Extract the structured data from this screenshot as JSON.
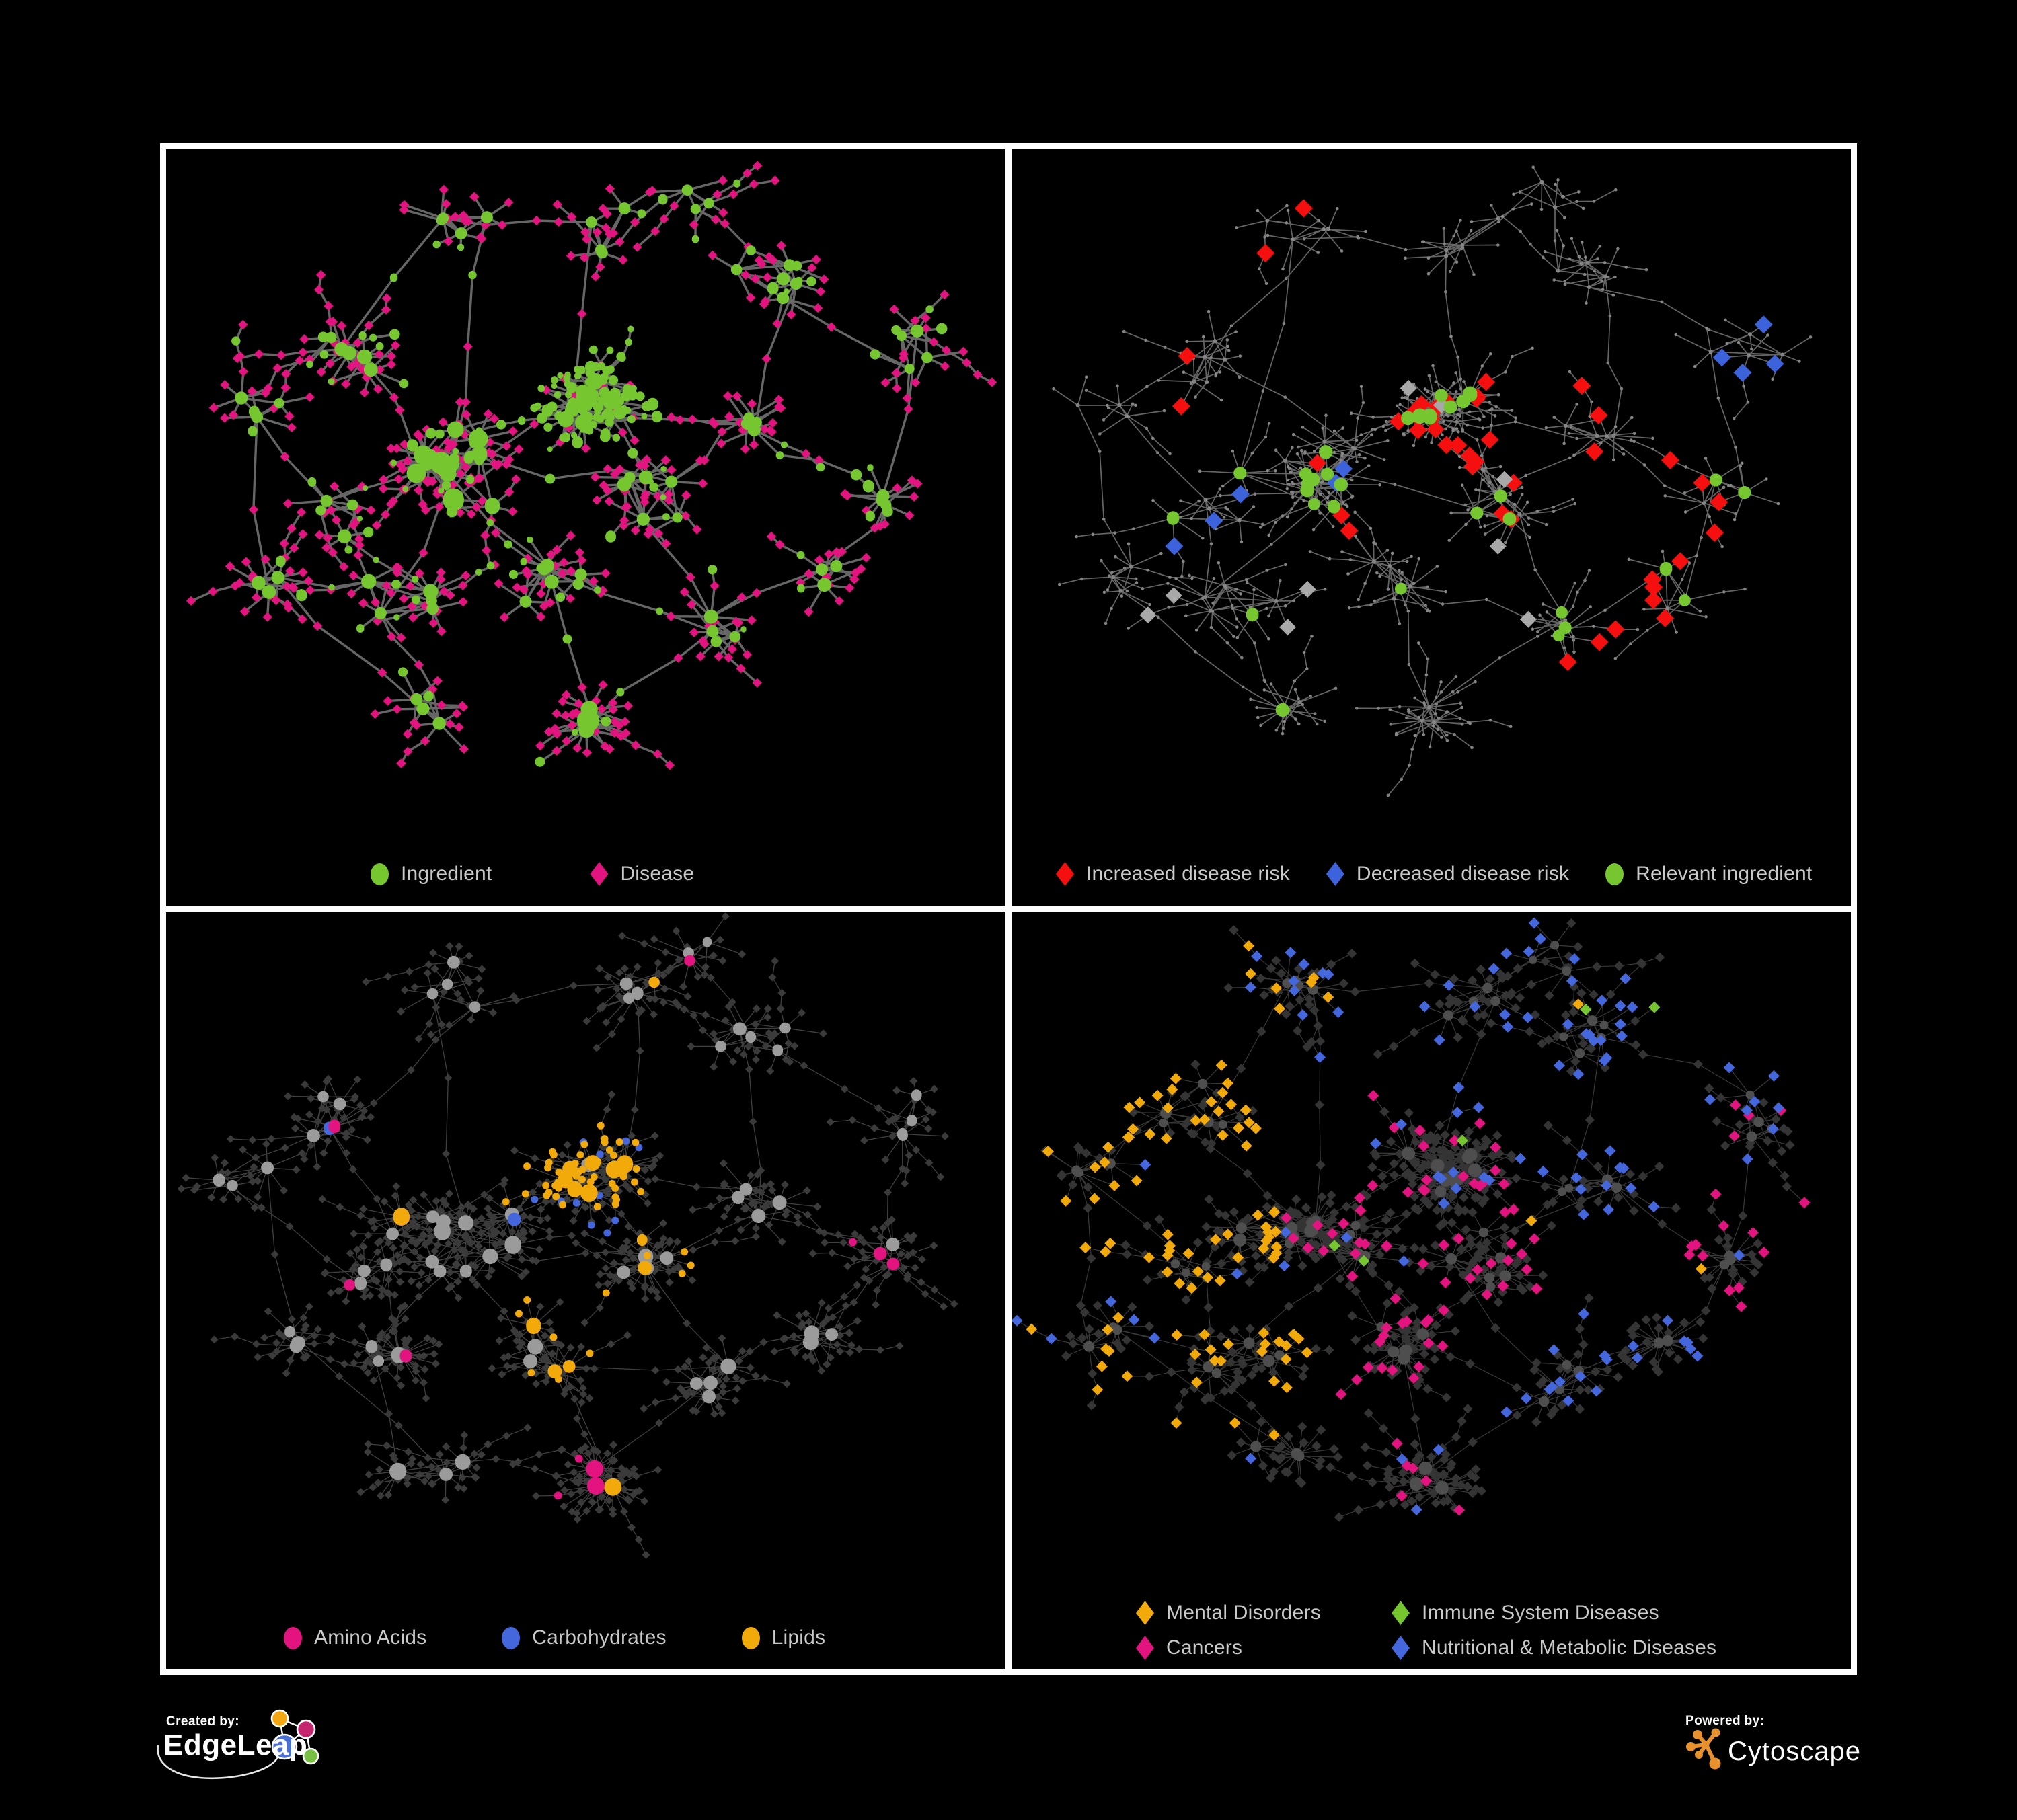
{
  "page": {
    "background": "#000000",
    "panel_border": "#fdfdfd",
    "legend_text_color": "#c9c9c9"
  },
  "panels": [
    {
      "name": "ingredient-disease-network",
      "legend_layout": "row",
      "legend": [
        {
          "shape": "circle",
          "color": "#76c72f",
          "label": "Ingredient"
        },
        {
          "shape": "diamond",
          "color": "#e3137f",
          "label": "Disease"
        }
      ],
      "style": {
        "mode": "A",
        "edge_color": "#6c6c6c",
        "edge_width": 3.4,
        "edge_opacity": 0.95,
        "hub_color": "#76c72f",
        "leaf_color": "#e3137f",
        "green_leaf_prob": {
          "1": 0.82,
          "*": 0.13
        }
      }
    },
    {
      "name": "disease-risk-network",
      "legend_layout": "row",
      "legend": [
        {
          "shape": "diamond",
          "color": "#f50f0f",
          "label": "Increased disease risk"
        },
        {
          "shape": "diamond",
          "color": "#3d63dc",
          "label": "Decreased disease risk"
        },
        {
          "shape": "circle",
          "color": "#76c72f",
          "label": "Relevant ingredient"
        }
      ],
      "style": {
        "mode": "B",
        "edge_color": "#878787",
        "edge_width": 1.7,
        "edge_opacity": 0.75,
        "dot_color": "#858585",
        "red": "#f50f0f",
        "blue": "#3d63dc",
        "gray": "#a8a8a8",
        "green": "#76c72f",
        "green_hub_prob": {
          "0": 0.5,
          "1": 0.55,
          "2": 0.25,
          "3": 0.2,
          "4": 0.12,
          "5": 0.2,
          "6": 0.5,
          "8": 0.35,
          "9": 0.5,
          "10": 0.2,
          "12": 0.2,
          "13": 0.5,
          "16": 0.15,
          "17": 0.4,
          "18": 0.3
        },
        "red_leaf_prob": {
          "0": 0.05,
          "1": 0.08,
          "2": 0.05,
          "6": 0.1,
          "7": 0.1,
          "8": 0.1,
          "13": 0.12,
          "15": 0.04,
          "17": 0.12
        },
        "blue_leaf_prob": {
          "0": 0.03,
          "3": 0.28,
          "12": 0.15
        },
        "gray_leaf_prob": {
          "0": 0.02,
          "1": 0.015,
          "2": 0.02,
          "4": 0.03,
          "6": 0.02,
          "8": 0.03
        }
      }
    },
    {
      "name": "nutrient-group-network",
      "legend_layout": "row",
      "legend": [
        {
          "shape": "circle",
          "color": "#e3137f",
          "label": "Amino Acids"
        },
        {
          "shape": "circle",
          "color": "#4467de",
          "label": "Carbohydrates"
        },
        {
          "shape": "circle",
          "color": "#f2a90a",
          "label": "Lipids"
        }
      ],
      "style": {
        "mode": "C",
        "edge_color": "#8e8e8e",
        "edge_width": 1.3,
        "edge_opacity": 0.45,
        "hub_gray": "#9b9b9b",
        "leaf_dark": "#3a3a3a",
        "orange": "#f2a90a",
        "blue": "#4467de",
        "pink": "#e3137f",
        "orange_hub": {
          "1": 0.8,
          "5": 0.4,
          "6": 0.4,
          "0": 0.18,
          "11": 0.1,
          "14": 0.25,
          "15": 0.1,
          "*": 0.07
        },
        "blue_hub": {
          "1": 0.18,
          "2": 0.22,
          "8": 0.08,
          "0": 0.05
        },
        "pink_hub": {
          "3": 0.2,
          "4": 0.15,
          "9": 0.25,
          "10": 0.2,
          "13": 0.25,
          "16": 0.25,
          "18": 0.2,
          "0": 0.04,
          "*": 0.03
        },
        "orange_leaf": {
          "1": 0.45,
          "5": 0.04,
          "6": 0.04
        },
        "blue_leaf": {
          "1": 0.12,
          "2": 0.015
        },
        "pink_leaf": {
          "4": 0.012,
          "9": 0.012,
          "13": 0.012,
          "16": 0.015
        }
      }
    },
    {
      "name": "disease-group-network",
      "legend_layout": "grid",
      "legend": [
        {
          "shape": "diamond",
          "color": "#f2a90a",
          "label": "Mental Disorders"
        },
        {
          "shape": "diamond",
          "color": "#76c72f",
          "label": "Immune System Diseases"
        },
        {
          "shape": "diamond",
          "color": "#e3137f",
          "label": "Cancers"
        },
        {
          "shape": "diamond",
          "color": "#4467de",
          "label": "Nutritional & Metabolic Diseases"
        }
      ],
      "style": {
        "mode": "D",
        "edge_color": "#8e8e8e",
        "edge_width": 1.2,
        "edge_opacity": 0.4,
        "hub_color": "#4e4e4e",
        "leaf_dark": "#343434",
        "orange": "#f2a90a",
        "pink": "#e3137f",
        "blue": "#4467de",
        "green": "#76c72f",
        "orange_prob": {
          "2": 0.6,
          "3": 0.5,
          "4": 0.3,
          "10": 0.2,
          "15": 0.15,
          "16": 0.2,
          "18": 0.5,
          "0W": 0.35,
          "*": 0.01
        },
        "pink_prob": {
          "1": 0.12,
          "5": 0.25,
          "6": 0.32,
          "9": 0.1,
          "12": 0.25,
          "13": 0.5,
          "0E": 0.18,
          "*": 0.01
        },
        "blue_prob": {
          "1": 0.08,
          "7": 0.32,
          "8": 0.28,
          "11": 0.32,
          "12": 0.3,
          "14": 0.2,
          "15": 0.25,
          "16": 0.15,
          "17": 0.32,
          "19": 0.3,
          "*": 0.02
        },
        "green_prob": 0.012
      }
    }
  ],
  "footer": {
    "created_by_label": "Created by:",
    "created_by_name": "EdgeLeap",
    "powered_by_label": "Powered by:",
    "powered_by_name": "Cytoscape",
    "edgeleap_node_colors": [
      "#f2a713",
      "#c4256e",
      "#4a6fd4",
      "#77c043"
    ],
    "cytoscape_color": "#e8912d"
  },
  "network": {
    "panel_seeds": [
      11,
      23,
      37,
      53
    ],
    "color_seeds": [
      101,
      202,
      303,
      404
    ],
    "panel_leaf_scale": [
      1,
      0.95,
      1.45,
      1.45
    ],
    "clusters": [
      [
        0.34,
        0.49,
        13,
        0.085,
        4,
        9
      ],
      [
        0.51,
        0.38,
        9,
        0.05,
        7,
        13
      ],
      [
        0.2,
        0.3,
        5,
        0.06,
        3,
        8
      ],
      [
        0.21,
        0.55,
        4,
        0.05,
        3,
        7
      ],
      [
        0.26,
        0.68,
        5,
        0.05,
        4,
        9
      ],
      [
        0.45,
        0.66,
        5,
        0.05,
        4,
        9
      ],
      [
        0.58,
        0.52,
        6,
        0.055,
        3,
        8
      ],
      [
        0.7,
        0.42,
        4,
        0.05,
        3,
        7
      ],
      [
        0.66,
        0.72,
        4,
        0.045,
        4,
        9
      ],
      [
        0.5,
        0.87,
        3,
        0.04,
        9,
        16
      ],
      [
        0.3,
        0.84,
        3,
        0.045,
        5,
        10
      ],
      [
        0.72,
        0.18,
        5,
        0.06,
        3,
        6
      ],
      [
        0.9,
        0.3,
        4,
        0.05,
        3,
        6
      ],
      [
        0.88,
        0.52,
        3,
        0.04,
        3,
        7
      ],
      [
        0.55,
        0.12,
        4,
        0.05,
        3,
        6
      ],
      [
        0.33,
        0.1,
        4,
        0.05,
        3,
        6
      ],
      [
        0.1,
        0.64,
        3,
        0.04,
        3,
        7
      ],
      [
        0.8,
        0.66,
        3,
        0.045,
        4,
        8
      ],
      [
        0.08,
        0.4,
        3,
        0.045,
        3,
        6
      ],
      [
        0.64,
        0.06,
        3,
        0.04,
        2,
        5
      ]
    ],
    "links": [
      [
        0,
        1
      ],
      [
        0,
        2
      ],
      [
        0,
        3
      ],
      [
        0,
        4
      ],
      [
        0,
        5
      ],
      [
        0,
        6
      ],
      [
        1,
        6
      ],
      [
        1,
        14
      ],
      [
        2,
        15
      ],
      [
        2,
        18
      ],
      [
        3,
        18
      ],
      [
        3,
        4
      ],
      [
        4,
        10
      ],
      [
        5,
        9
      ],
      [
        5,
        8
      ],
      [
        6,
        7
      ],
      [
        6,
        8
      ],
      [
        7,
        11
      ],
      [
        7,
        13
      ],
      [
        11,
        12
      ],
      [
        11,
        19
      ],
      [
        12,
        13
      ],
      [
        14,
        15
      ],
      [
        14,
        19
      ],
      [
        8,
        17
      ],
      [
        13,
        17
      ],
      [
        16,
        4
      ],
      [
        16,
        18
      ],
      [
        0,
        15
      ],
      [
        1,
        7
      ],
      [
        9,
        8
      ],
      [
        10,
        16
      ]
    ]
  }
}
